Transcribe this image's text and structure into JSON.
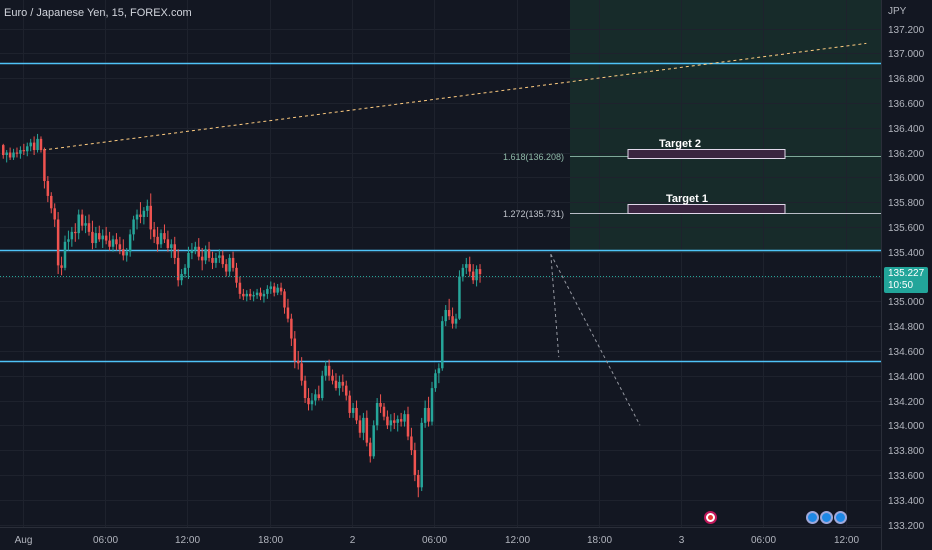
{
  "header": {
    "title": "Euro / Japanese Yen, 15, FOREX.com"
  },
  "price_badge": {
    "price": "135.227",
    "countdown": "10:50"
  },
  "events": [
    "red-event-icon",
    "globe-event-icon",
    "globe-event-icon",
    "globe-event-icon"
  ],
  "colors": {
    "background": "#131722",
    "up": "#26a69a",
    "down": "#ef5350",
    "level_line": "#4fc3f7",
    "target_box": "#9c27b0",
    "trendline": "#ffcc80",
    "projection": "#1c3d32"
  },
  "chart_data": {
    "type": "candlestick",
    "currency_label": "JPY",
    "y_axis": {
      "range": [
        133.18,
        137.43
      ],
      "ticks": [
        "137.200",
        "137.000",
        "136.800",
        "136.600",
        "136.400",
        "136.200",
        "136.000",
        "135.800",
        "135.600",
        "135.400",
        "135.200",
        "135.000",
        "134.800",
        "134.600",
        "134.400",
        "134.200",
        "134.000",
        "133.800",
        "133.600",
        "133.400",
        "133.200"
      ]
    },
    "x_axis": {
      "labels": [
        {
          "label": "Aug",
          "bar": 6
        },
        {
          "label": "06:00",
          "bar": 30
        },
        {
          "label": "12:00",
          "bar": 54
        },
        {
          "label": "18:00",
          "bar": 78
        },
        {
          "label": "2",
          "bar": 102
        },
        {
          "label": "06:00",
          "bar": 126
        },
        {
          "label": "12:00",
          "bar": 150
        },
        {
          "label": "18:00",
          "bar": 174
        },
        {
          "label": "3",
          "bar": 198
        },
        {
          "label": "06:00",
          "bar": 222
        },
        {
          "label": "12:00",
          "bar": 246
        }
      ]
    },
    "horizontal_levels": [
      136.92,
      135.41,
      134.52
    ],
    "current_price": 135.227,
    "fib_levels": [
      {
        "label": "1.618(136.208)",
        "value": 136.208
      },
      {
        "label": "1.272(135.731)",
        "value": 135.731
      }
    ],
    "targets": [
      {
        "label": "Target 2",
        "value": 136.208
      },
      {
        "label": "Target 1",
        "value": 135.731
      }
    ],
    "trendline": {
      "from": {
        "bar": 12,
        "price": 136.22
      },
      "to": {
        "bar": 252,
        "price": 137.08
      }
    },
    "projection_leg": {
      "from": {
        "bar": 160,
        "price": 135.38
      },
      "to": {
        "bar": 186,
        "price": 134.0
      }
    },
    "candles": [
      [
        136.26,
        136.27,
        136.15,
        136.18
      ],
      [
        136.18,
        136.22,
        136.12,
        136.2
      ],
      [
        136.2,
        136.24,
        136.14,
        136.16
      ],
      [
        136.16,
        136.23,
        136.14,
        136.2
      ],
      [
        136.2,
        136.24,
        136.16,
        136.19
      ],
      [
        136.19,
        136.25,
        136.15,
        136.22
      ],
      [
        136.22,
        136.27,
        136.18,
        136.21
      ],
      [
        136.21,
        136.28,
        136.17,
        136.25
      ],
      [
        136.25,
        136.31,
        136.21,
        136.28
      ],
      [
        136.28,
        136.33,
        136.18,
        136.22
      ],
      [
        136.22,
        136.35,
        136.2,
        136.31
      ],
      [
        136.31,
        136.33,
        136.2,
        136.22
      ],
      [
        136.22,
        136.24,
        135.91,
        135.97
      ],
      [
        135.97,
        136.01,
        135.8,
        135.85
      ],
      [
        135.85,
        135.88,
        135.71,
        135.75
      ],
      [
        135.75,
        135.79,
        135.6,
        135.66
      ],
      [
        135.66,
        135.72,
        135.22,
        135.29
      ],
      [
        135.29,
        135.36,
        135.21,
        135.27
      ],
      [
        135.27,
        135.53,
        135.25,
        135.48
      ],
      [
        135.48,
        135.57,
        135.41,
        135.5
      ],
      [
        135.5,
        135.6,
        135.44,
        135.56
      ],
      [
        135.56,
        135.63,
        135.48,
        135.55
      ],
      [
        135.55,
        135.74,
        135.5,
        135.7
      ],
      [
        135.7,
        135.74,
        135.57,
        135.61
      ],
      [
        135.61,
        135.69,
        135.55,
        135.63
      ],
      [
        135.63,
        135.7,
        135.53,
        135.56
      ],
      [
        135.56,
        135.65,
        135.42,
        135.47
      ],
      [
        135.47,
        135.6,
        135.43,
        135.55
      ],
      [
        135.55,
        135.61,
        135.48,
        135.5
      ],
      [
        135.5,
        135.58,
        135.43,
        135.53
      ],
      [
        135.53,
        135.6,
        135.46,
        135.49
      ],
      [
        135.49,
        135.56,
        135.41,
        135.44
      ],
      [
        135.44,
        135.53,
        135.4,
        135.5
      ],
      [
        135.5,
        135.55,
        135.41,
        135.46
      ],
      [
        135.46,
        135.52,
        135.38,
        135.42
      ],
      [
        135.42,
        135.5,
        135.33,
        135.37
      ],
      [
        135.37,
        135.43,
        135.32,
        135.4
      ],
      [
        135.4,
        135.58,
        135.36,
        135.54
      ],
      [
        135.54,
        135.69,
        135.49,
        135.66
      ],
      [
        135.66,
        135.74,
        135.58,
        135.7
      ],
      [
        135.7,
        135.8,
        135.63,
        135.68
      ],
      [
        135.68,
        135.76,
        135.62,
        135.73
      ],
      [
        135.73,
        135.82,
        135.68,
        135.77
      ],
      [
        135.77,
        135.87,
        135.5,
        135.58
      ],
      [
        135.58,
        135.64,
        135.47,
        135.52
      ],
      [
        135.52,
        135.6,
        135.4,
        135.46
      ],
      [
        135.46,
        135.58,
        135.43,
        135.55
      ],
      [
        135.55,
        135.62,
        135.47,
        135.5
      ],
      [
        135.5,
        135.57,
        135.4,
        135.43
      ],
      [
        135.43,
        135.5,
        135.35,
        135.46
      ],
      [
        135.46,
        135.52,
        135.3,
        135.35
      ],
      [
        135.35,
        135.42,
        135.12,
        135.17
      ],
      [
        135.17,
        135.26,
        135.13,
        135.22
      ],
      [
        135.22,
        135.3,
        135.19,
        135.27
      ],
      [
        135.27,
        135.44,
        135.18,
        135.39
      ],
      [
        135.39,
        135.47,
        135.34,
        135.41
      ],
      [
        135.41,
        135.48,
        135.38,
        135.44
      ],
      [
        135.44,
        135.51,
        135.33,
        135.36
      ],
      [
        135.36,
        135.43,
        135.25,
        135.33
      ],
      [
        135.33,
        135.45,
        135.3,
        135.42
      ],
      [
        135.42,
        135.48,
        135.32,
        135.35
      ],
      [
        135.35,
        135.4,
        135.26,
        135.31
      ],
      [
        135.31,
        135.39,
        135.27,
        135.35
      ],
      [
        135.35,
        135.42,
        135.31,
        135.37
      ],
      [
        135.37,
        135.41,
        135.27,
        135.3
      ],
      [
        135.3,
        135.34,
        135.2,
        135.24
      ],
      [
        135.24,
        135.38,
        135.2,
        135.35
      ],
      [
        135.35,
        135.4,
        135.24,
        135.27
      ],
      [
        135.27,
        135.31,
        135.11,
        135.15
      ],
      [
        135.15,
        135.2,
        135.02,
        135.06
      ],
      [
        135.06,
        135.1,
        135.01,
        135.04
      ],
      [
        135.04,
        135.09,
        135.0,
        135.06
      ],
      [
        135.06,
        135.1,
        135.01,
        135.04
      ],
      [
        135.04,
        135.08,
        135.0,
        135.05
      ],
      [
        135.05,
        135.1,
        135.02,
        135.07
      ],
      [
        135.07,
        135.11,
        135.01,
        135.04
      ],
      [
        135.04,
        135.09,
        134.99,
        135.06
      ],
      [
        135.06,
        135.13,
        135.02,
        135.1
      ],
      [
        135.1,
        135.16,
        135.06,
        135.12
      ],
      [
        135.12,
        135.15,
        135.04,
        135.07
      ],
      [
        135.07,
        135.14,
        135.05,
        135.11
      ],
      [
        135.11,
        135.15,
        135.05,
        135.08
      ],
      [
        135.08,
        135.1,
        134.9,
        134.95
      ],
      [
        134.95,
        135.02,
        134.83,
        134.86
      ],
      [
        134.86,
        134.9,
        134.64,
        134.7
      ],
      [
        134.7,
        134.76,
        134.46,
        134.52
      ],
      [
        134.52,
        134.6,
        134.45,
        134.5
      ],
      [
        134.5,
        134.55,
        134.32,
        134.36
      ],
      [
        134.36,
        134.4,
        134.18,
        134.22
      ],
      [
        134.22,
        134.3,
        134.12,
        134.17
      ],
      [
        134.17,
        134.26,
        134.12,
        134.2
      ],
      [
        134.2,
        134.29,
        134.16,
        134.25
      ],
      [
        134.25,
        134.32,
        134.2,
        134.22
      ],
      [
        134.22,
        134.44,
        134.2,
        134.4
      ],
      [
        134.4,
        134.52,
        134.36,
        134.48
      ],
      [
        134.48,
        134.53,
        134.36,
        134.4
      ],
      [
        134.4,
        134.45,
        134.33,
        134.36
      ],
      [
        134.36,
        134.42,
        134.28,
        134.3
      ],
      [
        134.3,
        134.4,
        134.24,
        134.35
      ],
      [
        134.35,
        134.41,
        134.27,
        134.32
      ],
      [
        134.32,
        134.36,
        134.2,
        134.24
      ],
      [
        134.24,
        134.28,
        134.06,
        134.1
      ],
      [
        134.1,
        134.18,
        134.06,
        134.14
      ],
      [
        134.14,
        134.2,
        134.01,
        134.04
      ],
      [
        134.04,
        134.08,
        133.9,
        133.94
      ],
      [
        133.94,
        134.1,
        133.88,
        134.06
      ],
      [
        134.06,
        134.12,
        133.83,
        133.86
      ],
      [
        133.86,
        133.9,
        133.7,
        133.75
      ],
      [
        133.75,
        134.04,
        133.73,
        134.0
      ],
      [
        134.0,
        134.22,
        133.96,
        134.18
      ],
      [
        134.18,
        134.25,
        134.1,
        134.15
      ],
      [
        134.15,
        134.18,
        134.04,
        134.07
      ],
      [
        134.07,
        134.12,
        133.97,
        134.0
      ],
      [
        134.0,
        134.09,
        133.95,
        134.04
      ],
      [
        134.04,
        134.1,
        133.97,
        134.02
      ],
      [
        134.02,
        134.08,
        133.95,
        134.05
      ],
      [
        134.05,
        134.1,
        133.99,
        134.03
      ],
      [
        134.03,
        134.12,
        133.99,
        134.09
      ],
      [
        134.09,
        134.15,
        133.88,
        133.91
      ],
      [
        133.91,
        133.98,
        133.76,
        133.8
      ],
      [
        133.8,
        133.86,
        133.55,
        133.6
      ],
      [
        133.6,
        133.64,
        133.42,
        133.5
      ],
      [
        133.5,
        134.06,
        133.47,
        134.02
      ],
      [
        134.02,
        134.2,
        133.98,
        134.14
      ],
      [
        134.14,
        134.23,
        133.99,
        134.03
      ],
      [
        134.03,
        134.35,
        134.0,
        134.3
      ],
      [
        134.3,
        134.45,
        134.27,
        134.42
      ],
      [
        134.42,
        134.5,
        134.34,
        134.46
      ],
      [
        134.46,
        134.88,
        134.44,
        134.84
      ],
      [
        134.84,
        134.97,
        134.8,
        134.93
      ],
      [
        134.93,
        135.02,
        134.85,
        134.88
      ],
      [
        134.88,
        134.95,
        134.78,
        134.82
      ],
      [
        134.82,
        134.9,
        134.78,
        134.86
      ],
      [
        134.86,
        135.25,
        134.85,
        135.2
      ],
      [
        135.2,
        135.3,
        135.16,
        135.27
      ],
      [
        135.27,
        135.35,
        135.22,
        135.3
      ],
      [
        135.3,
        135.36,
        135.2,
        135.24
      ],
      [
        135.24,
        135.3,
        135.14,
        135.17
      ],
      [
        135.17,
        135.29,
        135.12,
        135.26
      ],
      [
        135.26,
        135.3,
        135.15,
        135.22
      ]
    ]
  }
}
